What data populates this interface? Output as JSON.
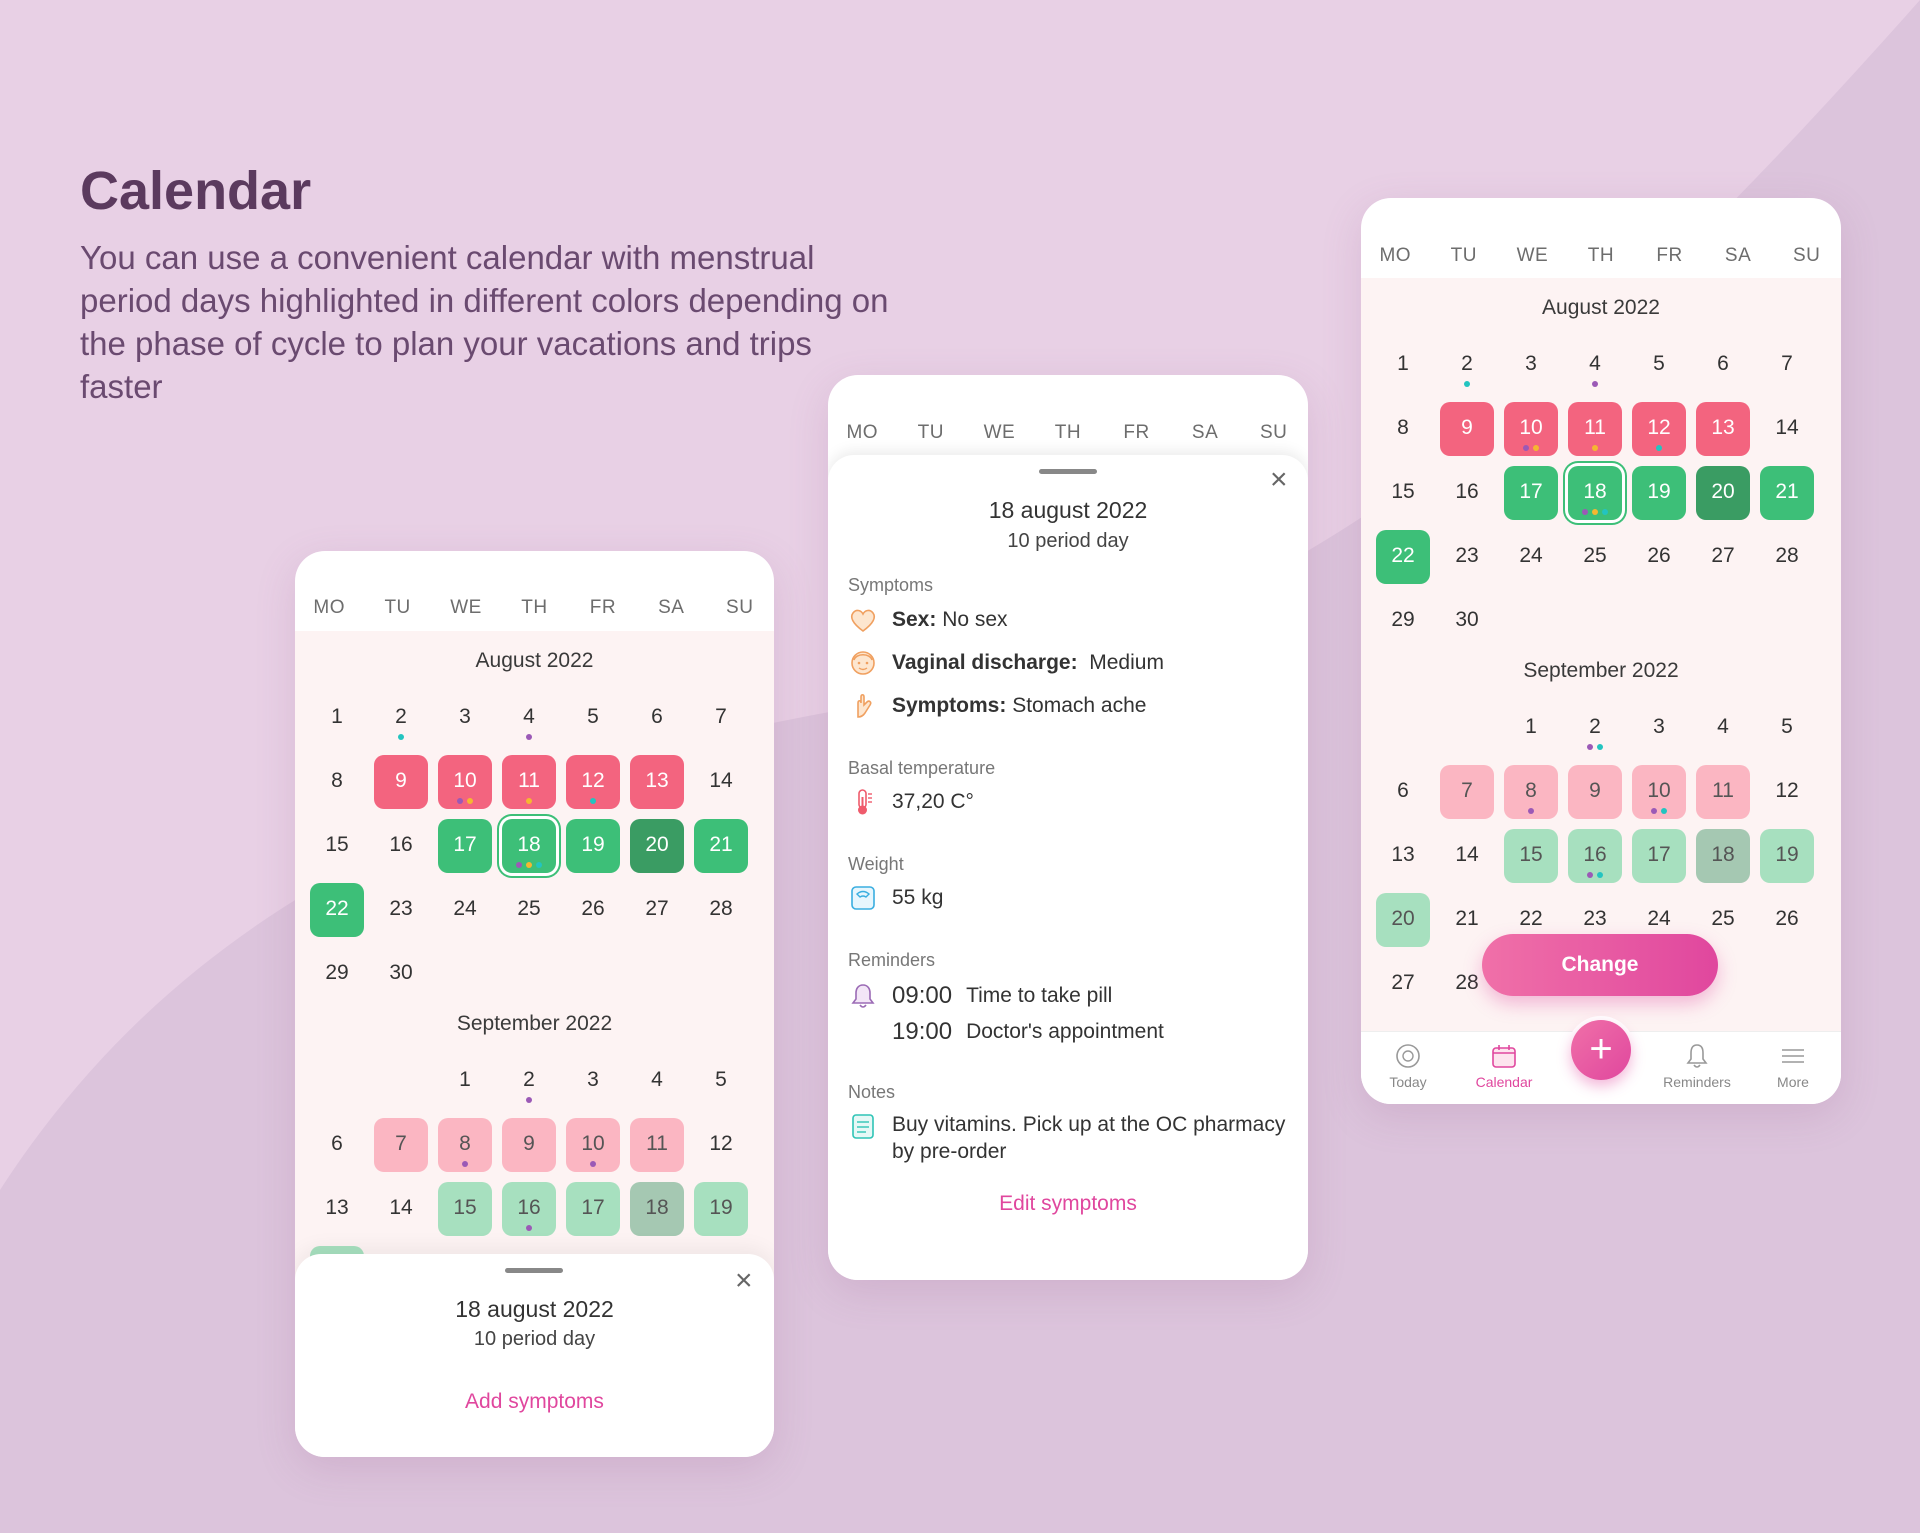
{
  "hero": {
    "title": "Calendar",
    "subtitle": "You can use a convenient calendar with menstrual period days highlighted in different colors depending on the phase of cycle to plan your vacations and trips faster"
  },
  "weekdays": [
    "MO",
    "TU",
    "WE",
    "TH",
    "FR",
    "SA",
    "SU"
  ],
  "months": {
    "august": "August 2022",
    "september": "September 2022"
  },
  "sheet_small": {
    "date": "18 august 2022",
    "period_day": "10 period day",
    "action": "Add symptoms"
  },
  "sheet_detail": {
    "date": "18 august 2022",
    "period_day": "10 period day",
    "symptoms_heading": "Symptoms",
    "sex_label": "Sex:",
    "sex_value": "No sex",
    "discharge_label": "Vaginal discharge:",
    "discharge_value": "Medium",
    "symptoms_label": "Symptoms:",
    "symptoms_value": "Stomach ache",
    "basal_heading": "Basal temperature",
    "basal_value": "37,20 C°",
    "weight_heading": "Weight",
    "weight_value": "55 kg",
    "reminders_heading": "Reminders",
    "reminders": [
      {
        "time": "09:00",
        "text": "Time to take pill"
      },
      {
        "time": "19:00",
        "text": "Doctor's appointment"
      }
    ],
    "notes_heading": "Notes",
    "notes_value": "Buy vitamins. Pick up at the OC pharmacy by pre-order",
    "action": "Edit symptoms"
  },
  "change_button": "Change",
  "nav": {
    "today": "Today",
    "calendar": "Calendar",
    "reminders": "Reminders",
    "more": "More"
  },
  "colors": {
    "accent": "#e0479e",
    "period": "#f3647f",
    "fertile": "#3dbf78",
    "ovulation": "#3a9c63"
  }
}
